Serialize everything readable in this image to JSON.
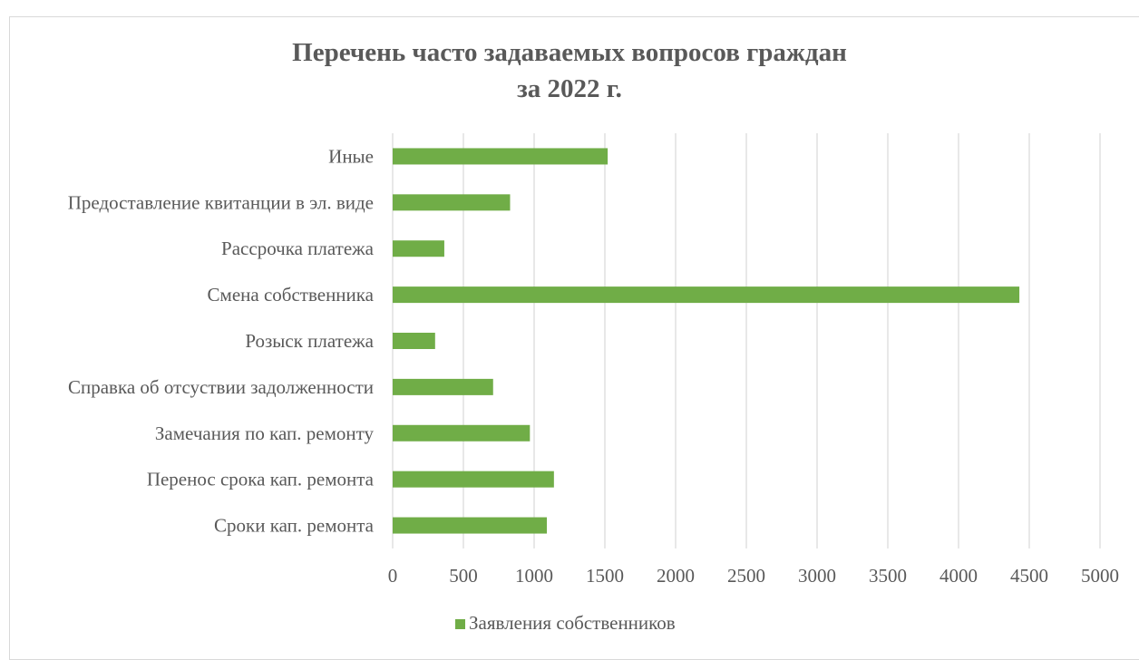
{
  "page_header_fragment": "           ",
  "chart_data": {
    "type": "bar",
    "orientation": "horizontal",
    "title_lines": [
      "Перечень часто задаваемых вопросов граждан",
      "за 2022 г."
    ],
    "categories": [
      "Иные",
      "Предоставление квитанции в эл. виде",
      "Рассрочка платежа",
      "Смена собственника",
      "Розыск платежа",
      "Справка об отсуствии задолженности",
      "Замечания по кап. ремонту",
      "Перенос срока кап. ремонта",
      "Сроки кап. ремонта"
    ],
    "series": [
      {
        "name": "Заявления собственников",
        "values": [
          1520,
          830,
          365,
          4430,
          300,
          710,
          970,
          1140,
          1090
        ],
        "color": "#70ad47"
      }
    ],
    "xlim": [
      0,
      5000
    ],
    "x_ticks": [
      "0",
      "500",
      "1000",
      "1500",
      "2000",
      "2500",
      "3000",
      "3500",
      "4000",
      "4500",
      "5000"
    ],
    "gridlines": true,
    "legend_position": "bottom"
  },
  "colors": {
    "bar": "#70ad47",
    "grid": "#d9d9d9",
    "label": "#595959",
    "title": "#595959"
  }
}
